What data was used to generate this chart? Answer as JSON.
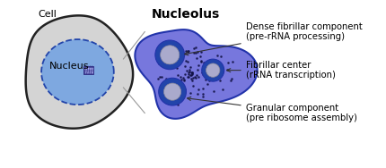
{
  "title": "Nucleolus",
  "title_fontsize": 10,
  "title_fontweight": "bold",
  "bg_color": "#ffffff",
  "cell_color": "#d4d4d4",
  "cell_edge_color": "#222222",
  "nucleus_color": "#7ea8e0",
  "nucleus_edge_color": "#2244aa",
  "nucleolus_body_color": "#7777dd",
  "nucleolus_edge_color": "#2233aa",
  "granule_ring_color": "#2244aa",
  "granule_inner_color": "#aaaacc",
  "dot_color": "#111144",
  "label_granular": "Granular component\n(pre ribosome assembly)",
  "label_fibrillar": "Fibrillar center\n(rRNA transcription)",
  "label_dense": "Dense fibrillar component\n(pre-rRNA processing)",
  "label_nucleus": "Nucleus",
  "label_cell": "Cell",
  "label_fontsize": 7.2
}
